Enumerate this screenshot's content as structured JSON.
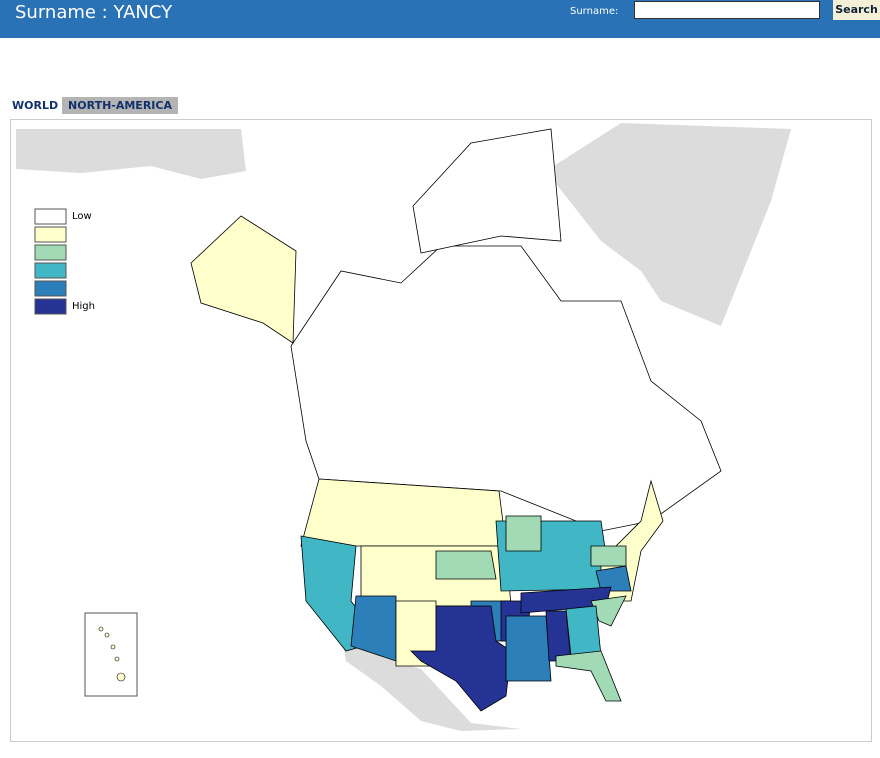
{
  "header": {
    "title": "Surname : YANCY",
    "search_label": "Surname:",
    "search_button": "Search"
  },
  "tabs": [
    "WORLD",
    "NORTH-AMERICA"
  ],
  "map": {
    "legend": {
      "low": "Low",
      "high": "High"
    },
    "legend_colors": [
      "#ffffff",
      "#ffffcc",
      "#a1dab4",
      "#41b6c4",
      "#2c7fb8",
      "#253494"
    ]
  }
}
